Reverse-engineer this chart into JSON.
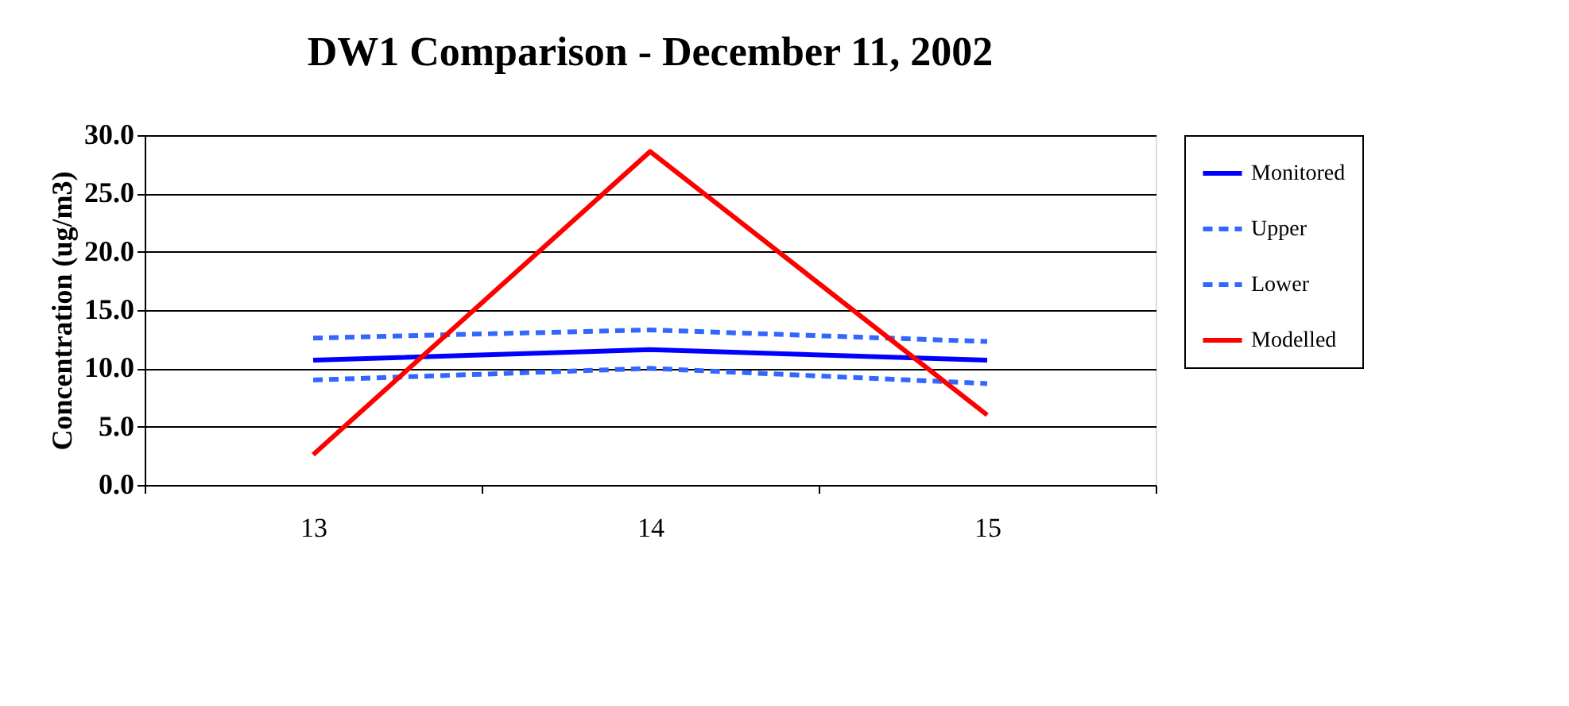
{
  "chart_data": {
    "type": "line",
    "title": "DW1 Comparison - December 11, 2002",
    "ylabel": "Concentration  (ug/m3)",
    "categories": [
      "13",
      "14",
      "15"
    ],
    "series": [
      {
        "name": "Monitored",
        "color": "#0000ff",
        "values": [
          10.7,
          11.6,
          10.7
        ],
        "line_style": "solid"
      },
      {
        "name": "Upper",
        "color": "#3366ff",
        "values": [
          12.6,
          13.3,
          12.3
        ],
        "line_style": "dashed"
      },
      {
        "name": "Lower",
        "color": "#3366ff",
        "values": [
          9.0,
          10.0,
          8.7
        ],
        "line_style": "dashed"
      },
      {
        "name": "Modelled",
        "color": "#ff0000",
        "values": [
          2.6,
          28.6,
          6.0
        ],
        "line_style": "solid"
      }
    ],
    "ylim": [
      0,
      30
    ],
    "yticks": [
      {
        "value": 0,
        "label": "0.0"
      },
      {
        "value": 5,
        "label": "5.0"
      },
      {
        "value": 10,
        "label": "10.0"
      },
      {
        "value": 15,
        "label": "15.0"
      },
      {
        "value": 20,
        "label": "20.0"
      },
      {
        "value": 25,
        "label": "25.0"
      },
      {
        "value": 30,
        "label": "30.0"
      }
    ],
    "grid": "y",
    "legend": "right",
    "marker": "none"
  }
}
